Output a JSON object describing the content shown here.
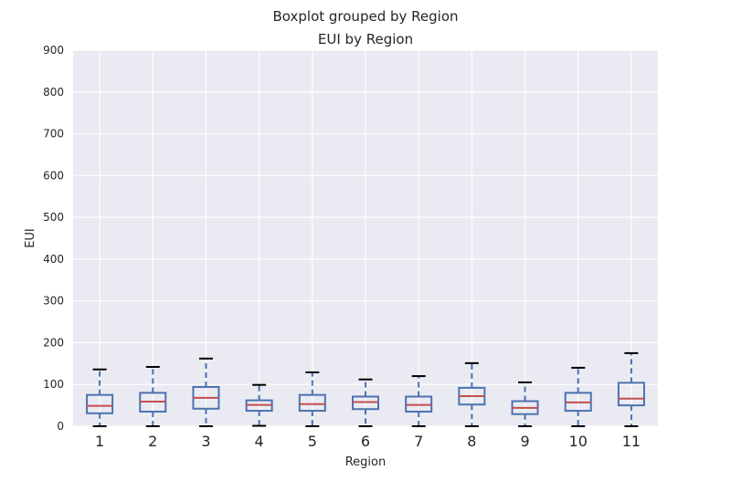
{
  "chart_data": {
    "type": "boxplot",
    "suptitle": "Boxplot grouped by Region",
    "title": "EUI by Region",
    "xlabel": "Region",
    "ylabel": "EUI",
    "ylim": [
      0,
      900
    ],
    "yticks": [
      0,
      100,
      200,
      300,
      400,
      500,
      600,
      700,
      800,
      900
    ],
    "categories": [
      "1",
      "2",
      "3",
      "4",
      "5",
      "6",
      "7",
      "8",
      "9",
      "10",
      "11"
    ],
    "boxes": [
      {
        "label": "1",
        "whisker_low": 0,
        "q1": 31,
        "median": 49,
        "q3": 75,
        "whisker_high": 136
      },
      {
        "label": "2",
        "whisker_low": 0,
        "q1": 35,
        "median": 59,
        "q3": 80,
        "whisker_high": 142
      },
      {
        "label": "3",
        "whisker_low": 0,
        "q1": 42,
        "median": 68,
        "q3": 94,
        "whisker_high": 162
      },
      {
        "label": "4",
        "whisker_low": 1,
        "q1": 37,
        "median": 51,
        "q3": 62,
        "whisker_high": 99
      },
      {
        "label": "5",
        "whisker_low": 0,
        "q1": 37,
        "median": 53,
        "q3": 75,
        "whisker_high": 129
      },
      {
        "label": "6",
        "whisker_low": 0,
        "q1": 41,
        "median": 58,
        "q3": 71,
        "whisker_high": 112
      },
      {
        "label": "7",
        "whisker_low": 0,
        "q1": 35,
        "median": 51,
        "q3": 71,
        "whisker_high": 120
      },
      {
        "label": "8",
        "whisker_low": 0,
        "q1": 52,
        "median": 72,
        "q3": 92,
        "whisker_high": 151
      },
      {
        "label": "9",
        "whisker_low": 0,
        "q1": 29,
        "median": 44,
        "q3": 60,
        "whisker_high": 105
      },
      {
        "label": "10",
        "whisker_low": 0,
        "q1": 37,
        "median": 57,
        "q3": 80,
        "whisker_high": 140
      },
      {
        "label": "11",
        "whisker_low": 0,
        "q1": 50,
        "median": 66,
        "q3": 104,
        "whisker_high": 175
      }
    ],
    "grid": true,
    "colors": {
      "background": "#eaeaf2",
      "grid": "#ffffff",
      "box": "#4c72b0",
      "median": "#c44e52",
      "cap": "#000000"
    }
  }
}
